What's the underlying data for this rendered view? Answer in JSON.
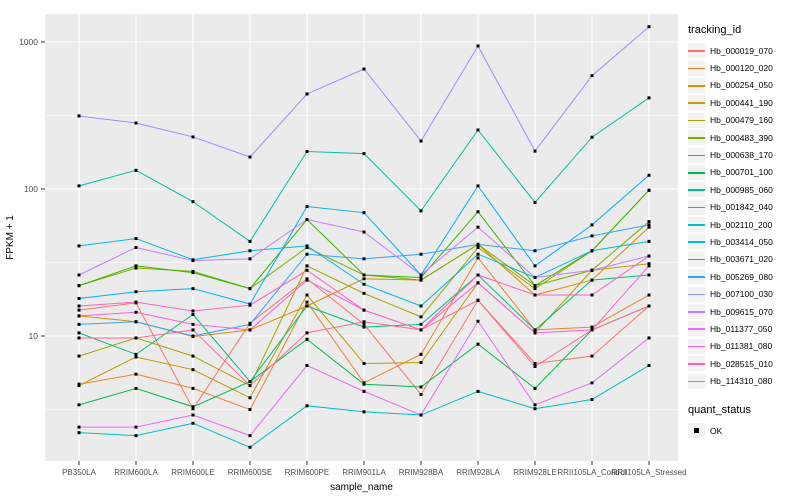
{
  "chart_data": {
    "type": "line",
    "title": "",
    "xlabel": "sample_name",
    "ylabel": "FPKM + 1",
    "y_scale": "log10",
    "y_ticks": [
      10,
      100,
      1000
    ],
    "y_minor_ticks": [
      3.162,
      31.62,
      316.2
    ],
    "ylim": [
      1.4,
      1550
    ],
    "grid": "on",
    "legend_position": "right",
    "categories": [
      "PB350LA",
      "RRIM600LA",
      "RRIM600LE",
      "RRIM600SE",
      "RRIM600PE",
      "RRIM901LA",
      "RRIM928BA",
      "RRIM928LA",
      "RRIM928LE",
      "RRII105LA_Control",
      "RRII105LA_Stressed"
    ],
    "series": [
      {
        "name": "Hb_000019_070",
        "color": "#F8766D",
        "values": [
          15,
          16.8,
          3.2,
          12.2,
          24.5,
          12,
          4.0,
          17.5,
          6.5,
          7.3,
          16
        ]
      },
      {
        "name": "Hb_000120_020",
        "color": "#EA8331",
        "values": [
          4.7,
          5.5,
          4.4,
          3.16,
          17,
          4.8,
          7.5,
          34,
          11,
          11.5,
          19
        ]
      },
      {
        "name": "Hb_000254_050",
        "color": "#D89000",
        "values": [
          13.7,
          12.5,
          9.9,
          11,
          16,
          24.5,
          24,
          42,
          19,
          24,
          55
        ]
      },
      {
        "name": "Hb_000441_190",
        "color": "#C09B00",
        "values": [
          4.6,
          7.2,
          5.9,
          3.8,
          19,
          6.5,
          6.6,
          23,
          10.5,
          28,
          31
        ]
      },
      {
        "name": "Hb_000479_160",
        "color": "#A3A500",
        "values": [
          7.3,
          9.7,
          7.3,
          4.6,
          30,
          19.5,
          13.5,
          40,
          21,
          38,
          98
        ]
      },
      {
        "name": "Hb_000483_390",
        "color": "#7CAE00",
        "values": [
          22,
          29,
          27.5,
          21,
          40,
          26,
          24,
          42,
          22,
          28,
          60
        ]
      },
      {
        "name": "Hb_000638_170",
        "color": "#39B600",
        "values": [
          22,
          30,
          27,
          21,
          62,
          26,
          25,
          70,
          22,
          38,
          98
        ]
      },
      {
        "name": "Hb_000701_100",
        "color": "#00BB4E",
        "values": [
          3.4,
          4.4,
          3.3,
          4.9,
          9.5,
          4.7,
          4.5,
          8.8,
          4.4,
          11,
          16
        ]
      },
      {
        "name": "Hb_000985_060",
        "color": "#00BF7D",
        "values": [
          10.5,
          7.5,
          14,
          4.9,
          16,
          11.5,
          12,
          26,
          11,
          24,
          26
        ]
      },
      {
        "name": "Hb_001842_040",
        "color": "#00C1A3",
        "values": [
          105,
          134,
          82,
          44,
          180,
          174,
          71,
          252,
          81,
          225,
          417
        ]
      },
      {
        "name": "Hb_002110_200",
        "color": "#00BFC4",
        "values": [
          2.2,
          2.1,
          2.55,
          1.75,
          3.35,
          3.05,
          2.9,
          4.2,
          3.2,
          3.7,
          6.3
        ]
      },
      {
        "name": "Hb_003414_050",
        "color": "#00BAE0",
        "values": [
          41,
          46,
          33,
          38,
          41,
          22.5,
          16,
          36,
          25,
          38,
          44
        ]
      },
      {
        "name": "Hb_003671_020",
        "color": "#00B0F6",
        "values": [
          18,
          20,
          21,
          16.5,
          76,
          69,
          26,
          105,
          30,
          57,
          124
        ]
      },
      {
        "name": "Hb_005269_080",
        "color": "#35A2FF",
        "values": [
          12,
          12.5,
          10,
          12,
          36,
          33.5,
          36,
          42,
          38,
          48,
          57
        ]
      },
      {
        "name": "Hb_007100_030",
        "color": "#9590FF",
        "values": [
          314,
          281,
          226,
          165,
          443,
          655,
          212,
          940,
          181,
          590,
          1270
        ]
      },
      {
        "name": "Hb_009615_070",
        "color": "#C77CFF",
        "values": [
          26,
          40,
          32.6,
          33.5,
          62,
          51,
          26,
          55,
          25,
          28,
          35
        ]
      },
      {
        "name": "Hb_011377_050",
        "color": "#E76BF3",
        "values": [
          2.4,
          2.4,
          2.9,
          2.1,
          6.3,
          4.2,
          2.9,
          12.6,
          3.4,
          4.8,
          9.7
        ]
      },
      {
        "name": "Hb_011381_080",
        "color": "#FA62DB",
        "values": [
          13.7,
          14.5,
          12,
          11,
          24,
          15,
          11,
          23,
          10.5,
          11,
          30
        ]
      },
      {
        "name": "Hb_028515_010",
        "color": "#FF62BC",
        "values": [
          16,
          17,
          14.8,
          16.2,
          28,
          15,
          11,
          26,
          19,
          19,
          35
        ]
      },
      {
        "name": "Hb_114310_080",
        "color": "#FF6A98",
        "values": [
          9.7,
          9.7,
          11,
          4.6,
          10.5,
          12.5,
          11,
          17.5,
          6.2,
          11,
          16
        ]
      }
    ]
  },
  "legend": {
    "tracking_title": "tracking_id",
    "quant_title": "quant_status",
    "quant_items": [
      {
        "label": "OK"
      }
    ]
  },
  "axes": {
    "x_title": "sample_name",
    "y_title": "FPKM + 1",
    "y_tick_labels": [
      "1000",
      "100",
      "10"
    ]
  },
  "colors": {
    "panel_bg": "#EBEBEB",
    "grid_major": "#FFFFFF",
    "grid_minor": "#FFFFFF",
    "point": "#000000",
    "tick_text": "#4D4D4D",
    "axis_title_text": "#000000",
    "tick_mark": "#333333",
    "legend_key_bg": "#F2F2F2"
  }
}
